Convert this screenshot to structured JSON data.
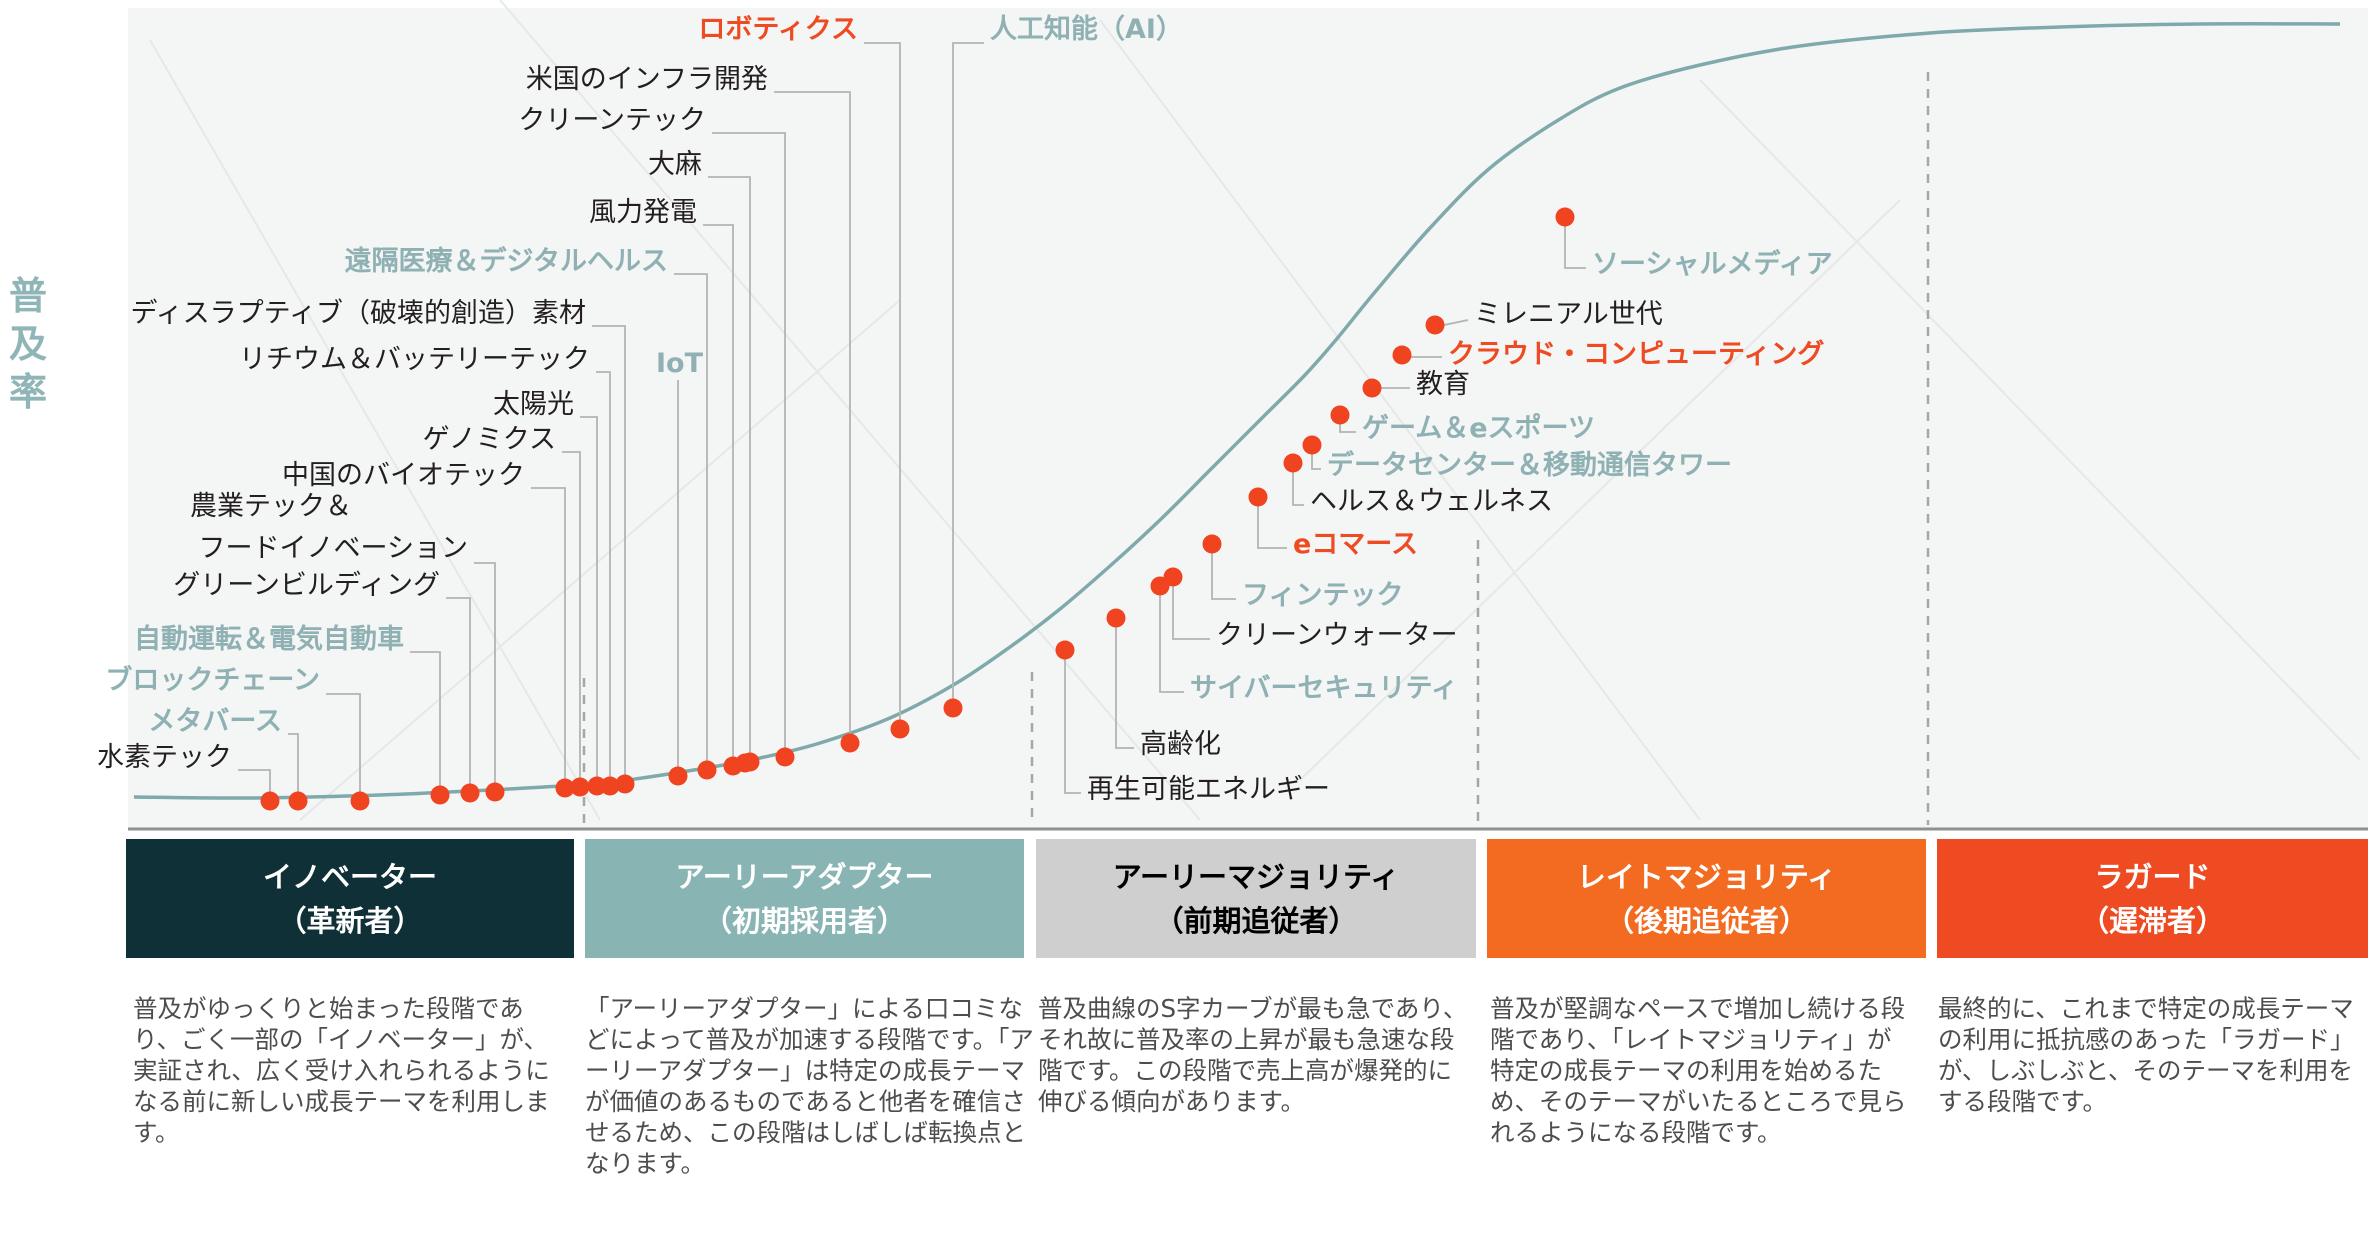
{
  "y_axis_label": "普及率",
  "colors": {
    "curve": "#7fa9aa",
    "dot": "#f04420",
    "label_default": "#231f20",
    "label_teal": "#8fb1b3",
    "label_orange": "#ef4b23",
    "leader": "#b3b3b3",
    "dashed": "#a6a6a6",
    "baseline": "#909090"
  },
  "segments": [
    {
      "title": "イノベーター",
      "subtitle": "（革新者）",
      "color": "#0e3036",
      "text_color": "#ffffff"
    },
    {
      "title": "アーリーアダプター",
      "subtitle": "（初期採用者）",
      "color": "#89b4b4",
      "text_color": "#ffffff"
    },
    {
      "title": "アーリーマジョリティ",
      "subtitle": "（前期追従者）",
      "color": "#cfcfcf",
      "text_color": "#000000"
    },
    {
      "title": "レイトマジョリティ",
      "subtitle": "（後期追従者）",
      "color": "#f26b21",
      "text_color": "#ffffff"
    },
    {
      "title": "ラガード",
      "subtitle": "（遅滞者）",
      "color": "#ef4b23",
      "text_color": "#ffffff"
    }
  ],
  "descriptions": [
    "普及がゆっくりと始まった段階であり、ごく一部の「イノベーター」が、実証され、広く受け入れられるようになる前に新しい成長テーマを利用します。",
    "「アーリーアダプター」による口コミなどによって普及が加速する段階です。「アーリーアダプター」は特定の成長テーマが価値のあるものであると他者を確信させるため、この段階はしばしば転換点となります。",
    "普及曲線のS字カーブが最も急であり、それ故に普及率の上昇が最も急速な段階です。この段階で売上高が爆発的に伸びる傾向があります。",
    "普及が堅調なペースで増加し続ける段階であり、「レイトマジョリティ」が特定の成長テーマの利用を始めるため、そのテーマがいたるところで見られるようになる段階です。",
    "最終的に、これまで特定の成長テーマの利用に抵抗感のあった「ラガード」が、しぶしぶと、そのテーマを利用をする段階です。"
  ],
  "themes": [
    {
      "label": "水素テック",
      "style": "default"
    },
    {
      "label": "メタバース",
      "style": "teal"
    },
    {
      "label": "ブロックチェーン",
      "style": "teal"
    },
    {
      "label": "自動運転＆電気自動車",
      "style": "teal"
    },
    {
      "label": "グリーンビルディング",
      "style": "default"
    },
    {
      "label": "農業テック＆",
      "style": "default"
    },
    {
      "label": "フードイノベーション",
      "style": "default"
    },
    {
      "label": "中国のバイオテック",
      "style": "default"
    },
    {
      "label": "ゲノミクス",
      "style": "default"
    },
    {
      "label": "太陽光",
      "style": "default"
    },
    {
      "label": "リチウム＆バッテリーテック",
      "style": "default"
    },
    {
      "label": "ディスラプティブ（破壊的創造）素材",
      "style": "default"
    },
    {
      "label": "IoT",
      "style": "teal"
    },
    {
      "label": "遠隔医療＆デジタルヘルス",
      "style": "teal"
    },
    {
      "label": "風力発電",
      "style": "default"
    },
    {
      "label": "大麻",
      "style": "default"
    },
    {
      "label": "クリーンテック",
      "style": "default"
    },
    {
      "label": "米国のインフラ開発",
      "style": "default"
    },
    {
      "label": "ロボティクス",
      "style": "orange"
    },
    {
      "label": "人工知能（AI）",
      "style": "teal"
    },
    {
      "label": "再生可能エネルギー",
      "style": "default"
    },
    {
      "label": "高齢化",
      "style": "default"
    },
    {
      "label": "サイバーセキュリティ",
      "style": "teal"
    },
    {
      "label": "クリーンウォーター",
      "style": "default"
    },
    {
      "label": "フィンテック",
      "style": "teal"
    },
    {
      "label": "eコマース",
      "style": "orange"
    },
    {
      "label": "ヘルス＆ウェルネス",
      "style": "default"
    },
    {
      "label": "データセンター＆移動通信タワー",
      "style": "teal"
    },
    {
      "label": "ゲーム＆eスポーツ",
      "style": "teal"
    },
    {
      "label": "教育",
      "style": "default"
    },
    {
      "label": "クラウド・コンピューティング",
      "style": "orange"
    },
    {
      "label": "ミレニアル世代",
      "style": "default"
    },
    {
      "label": "ソーシャルメディア",
      "style": "teal"
    }
  ]
}
